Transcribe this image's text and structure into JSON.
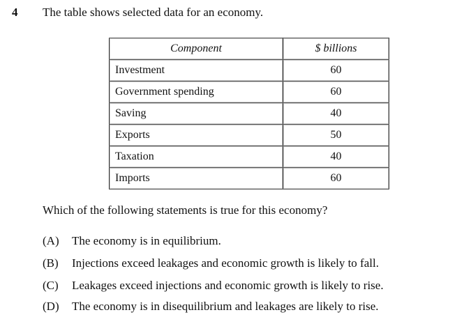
{
  "question": {
    "number": "4",
    "stem": "The table shows selected data for an economy.",
    "prompt": "Which of the following statements is true for this economy?"
  },
  "table": {
    "headers": [
      "Component",
      "$ billions"
    ],
    "rows": [
      {
        "component": "Investment",
        "value": "60"
      },
      {
        "component": "Government spending",
        "value": "60"
      },
      {
        "component": "Saving",
        "value": "40"
      },
      {
        "component": "Exports",
        "value": "50"
      },
      {
        "component": "Taxation",
        "value": "40"
      },
      {
        "component": "Imports",
        "value": "60"
      }
    ]
  },
  "options": [
    {
      "letter": "(A)",
      "text": "The economy is in equilibrium."
    },
    {
      "letter": "(B)",
      "text": "Injections exceed leakages and economic growth is likely to fall."
    },
    {
      "letter": "(C)",
      "text": "Leakages exceed injections and economic growth is likely to rise."
    },
    {
      "letter": "(D)",
      "text": "The economy is in disequilibrium and leakages are likely to rise."
    }
  ]
}
